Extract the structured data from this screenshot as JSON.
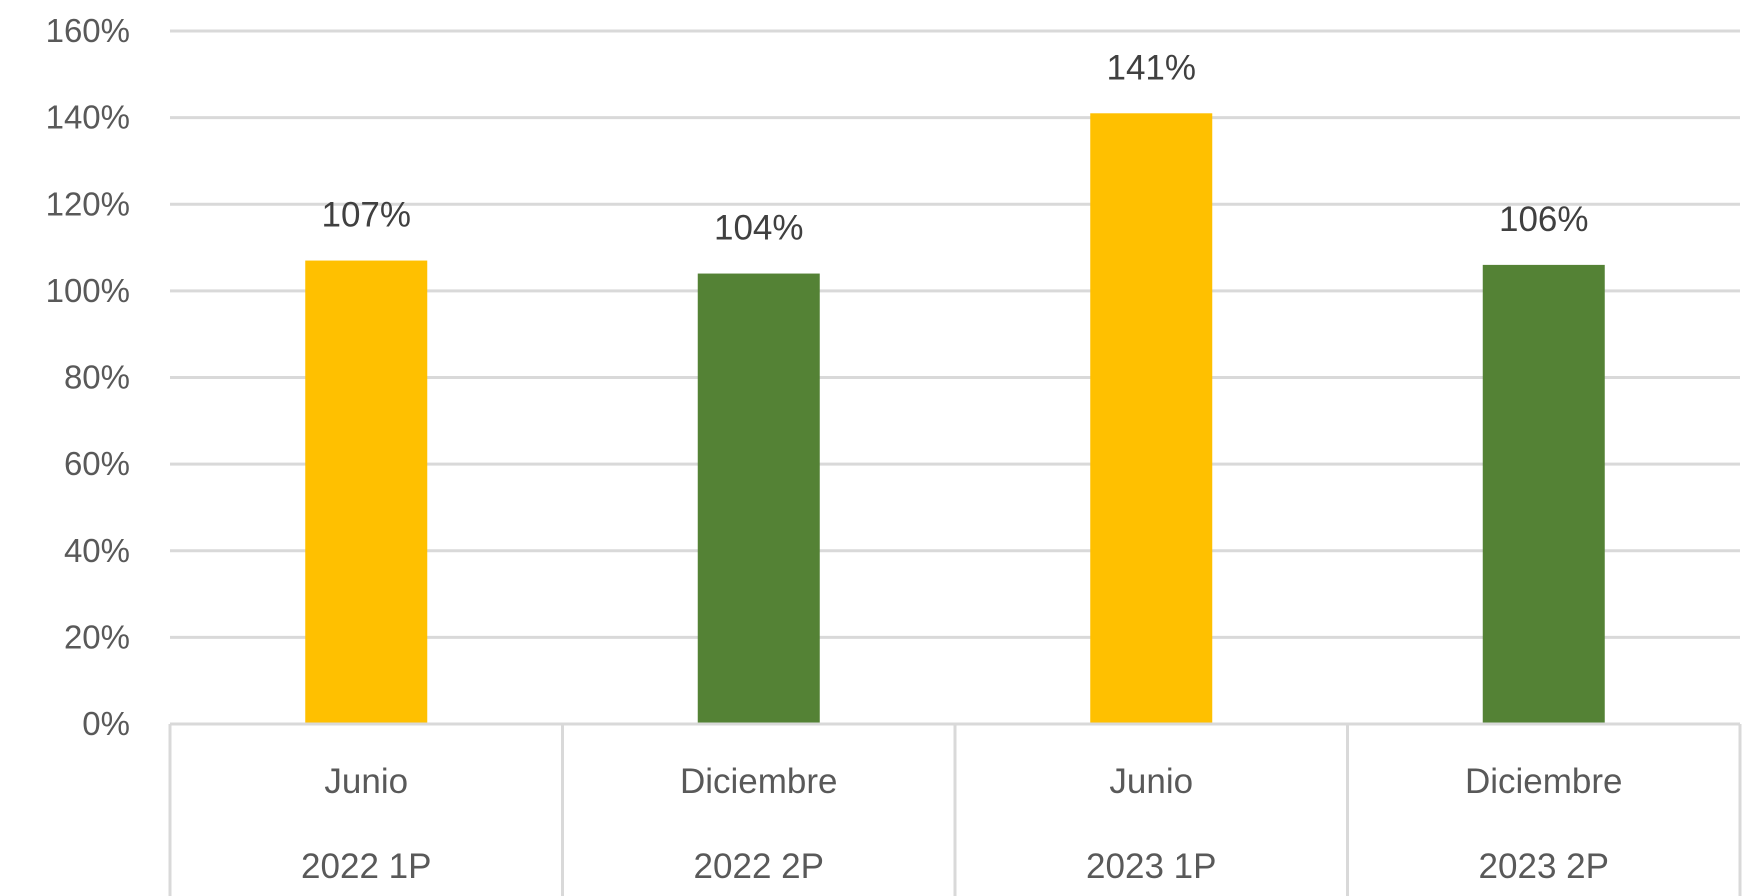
{
  "chart_data": {
    "type": "bar",
    "categories": [
      {
        "month": "Junio",
        "period": "2022 1P"
      },
      {
        "month": "Diciembre",
        "period": "2022 2P"
      },
      {
        "month": "Junio",
        "period": "2023 1P"
      },
      {
        "month": "Diciembre",
        "period": "2023 2P"
      }
    ],
    "values": [
      107,
      104,
      141,
      106
    ],
    "data_labels": [
      "107%",
      "104%",
      "141%",
      "106%"
    ],
    "bar_colors": [
      "#FFC000",
      "#548235",
      "#FFC000",
      "#548235"
    ],
    "y_ticks": [
      "0%",
      "20%",
      "40%",
      "60%",
      "80%",
      "100%",
      "120%",
      "140%",
      "160%"
    ],
    "ylim": [
      0,
      160
    ],
    "y_unit": "%",
    "grid": true,
    "title": "",
    "xlabel": "",
    "ylabel": ""
  }
}
